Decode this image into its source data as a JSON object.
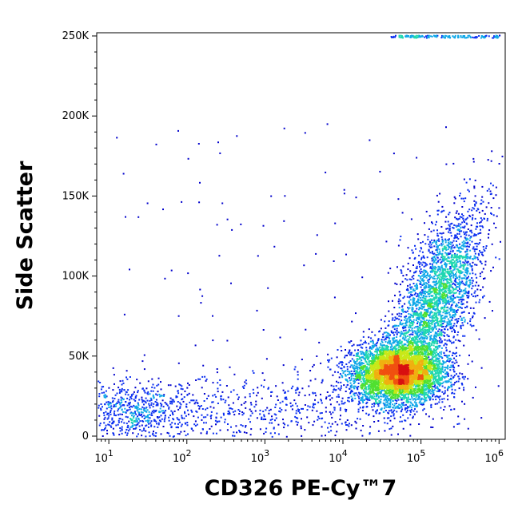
{
  "chart_data": {
    "type": "scatter",
    "style": "density-colored flow cytometry dot plot",
    "xlabel": "CD326 PE-Cy™7",
    "ylabel": "Side Scatter",
    "x_scale": "log",
    "y_scale": "linear",
    "xlim": [
      7,
      1200000
    ],
    "ylim": [
      -2000,
      252000
    ],
    "x_ticks": [
      {
        "value": 10,
        "base": "10",
        "exp": "1"
      },
      {
        "value": 100,
        "base": "10",
        "exp": "2"
      },
      {
        "value": 1000,
        "base": "10",
        "exp": "3"
      },
      {
        "value": 10000,
        "base": "10",
        "exp": "4"
      },
      {
        "value": 100000,
        "base": "10",
        "exp": "5"
      },
      {
        "value": 1000000,
        "base": "10",
        "exp": "6"
      }
    ],
    "y_ticks": [
      {
        "value": 0,
        "label": "0"
      },
      {
        "value": 50000,
        "label": "50K"
      },
      {
        "value": 100000,
        "label": "100K"
      },
      {
        "value": 150000,
        "label": "150K"
      },
      {
        "value": 200000,
        "label": "200K"
      },
      {
        "value": 250000,
        "label": "250K"
      }
    ],
    "density_colors": [
      "#0000cc",
      "#0a2ef0",
      "#10a8e8",
      "#20d8b0",
      "#50e030",
      "#c8e818",
      "#f0b010",
      "#f05010",
      "#d81010"
    ],
    "populations": [
      {
        "center": [
          50000,
          40000
        ],
        "spread_decades": 0.3,
        "spread_y": 9000,
        "relative_size": 1.0,
        "peak_density": "high"
      },
      {
        "center": [
          150000,
          85000
        ],
        "spread_decades": 0.3,
        "spread_y": 35000,
        "relative_size": 0.6,
        "peak_density": "medium"
      },
      {
        "center": [
          20,
          15000
        ],
        "spread_decades": 0.45,
        "spread_y": 10000,
        "relative_size": 0.15,
        "peak_density": "low"
      },
      {
        "center": [
          2000,
          15000
        ],
        "spread_decades": 1.0,
        "spread_y": 12000,
        "relative_size": 0.12,
        "peak_density": "low"
      }
    ],
    "saturation_band_y": 250000,
    "grid": false,
    "legend": "none"
  }
}
